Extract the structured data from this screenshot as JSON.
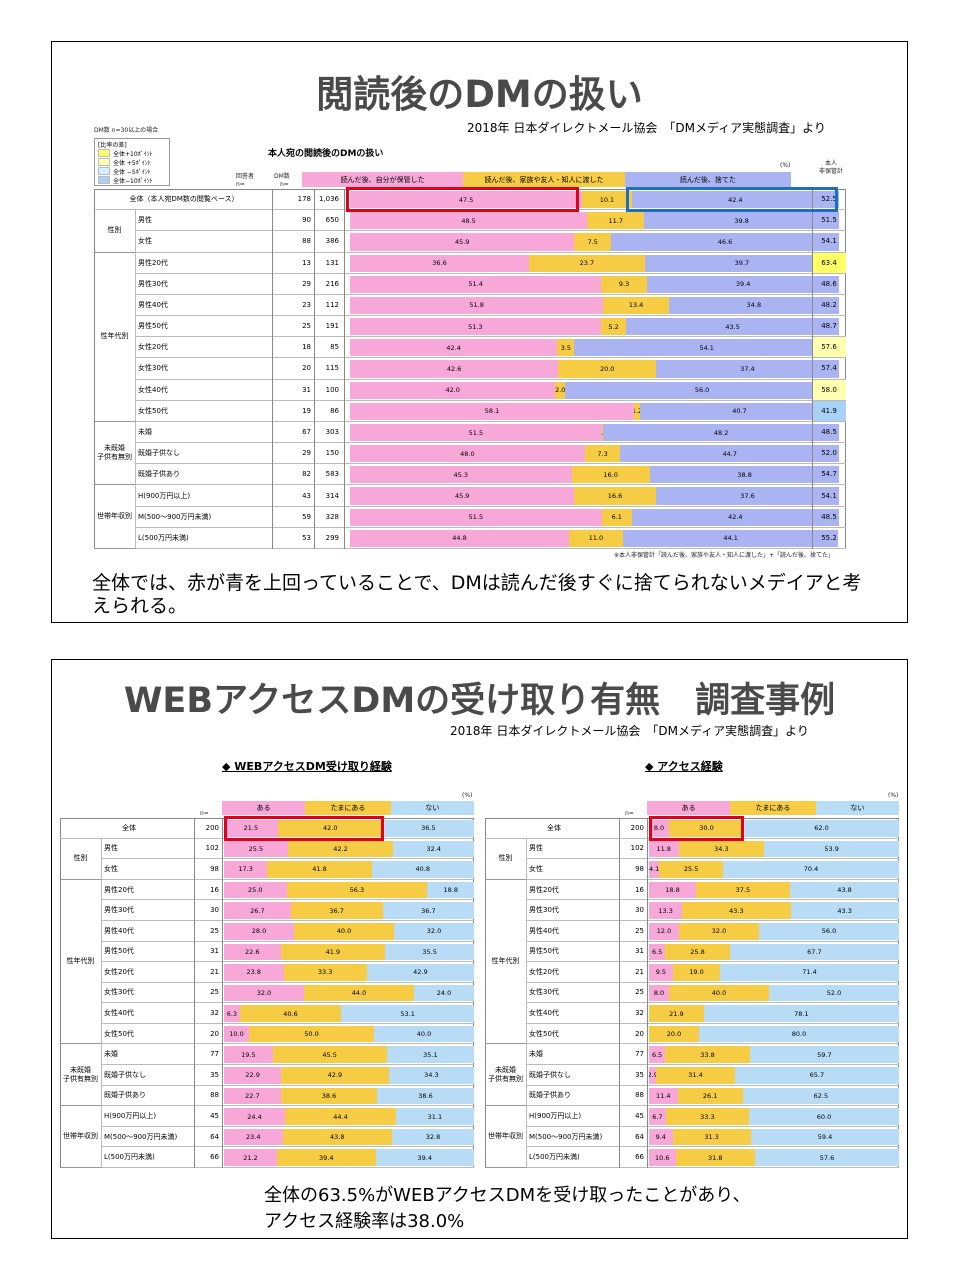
{
  "slide1": {
    "title": "閲読後のDMの扱い",
    "source": "2018年 日本ダイレクトメール協会　「DMメディア実態調査」より",
    "note_top": "DM数 n=30以上の場合",
    "legend": [
      "[比率の差]",
      "全体+10ﾎﾟｲﾝﾄ",
      "全体 +5ﾎﾟｲﾝﾄ",
      "全体 −5ﾎﾟｲﾝﾄ",
      "全体−10ﾎﾟｲﾝﾄ"
    ],
    "chart_title": "本人宛の閲読後のDMの扱い",
    "percent_label": "(%)",
    "col_respondents": "回答者",
    "col_respondents_n": "n=",
    "col_dm": "DM数",
    "col_dm_n": "n=",
    "col_right": "本人\n非保管計",
    "series_labels": [
      "読んだ後、自分が保管した",
      "読んだ後、家族や友人・知人に渡した",
      "読んだ後、捨てた"
    ],
    "footnote": "※本人非保管計「読んだ後、家族や友人・知人に渡した」+「読んだ後、捨てた」",
    "caption": "全体では、赤が青を上回っていることで、DMは読んだ後すぐに捨てられないメデイアと考えられる。",
    "colors": {
      "keep": "#f7a8d8",
      "give": "#f5cc44",
      "discard": "#aab4f2",
      "hl_red": "#e0001a",
      "hl_blue": "#1f6fc0",
      "hi_plus10": "#ffff66",
      "hi_plus5": "#ffffb0",
      "hi_minus5": "#d6ecff",
      "hi_minus10": "#a8d2f5"
    }
  },
  "slide2": {
    "title": "WEBアクセスDMの受け取り有無　調査事例",
    "source": "2018年 日本ダイレクトメール協会　「DMメディア実態調査」より",
    "caption_line1": "全体の63.5%がWEBアクセスDMを受け取ったことがあり、",
    "caption_line2": "アクセス経験率は38.0%",
    "colors": {
      "aru": "#f7a8d8",
      "tama": "#f5cc44",
      "nai": "#b8dcf5",
      "hl_red": "#e0001a"
    }
  },
  "chart_data": [
    {
      "type": "bar",
      "title": "本人宛の閲読後のDMの扱い",
      "unit": "%",
      "groups": [
        {
          "label": "",
          "rows": [
            0
          ]
        },
        {
          "label": "性別",
          "rows": [
            1,
            2
          ]
        },
        {
          "label": "性年代別",
          "rows": [
            3,
            4,
            5,
            6,
            7,
            8,
            9,
            10
          ]
        },
        {
          "label": "未既婚\n子供有無別",
          "rows": [
            11,
            12,
            13
          ]
        },
        {
          "label": "世帯年収別",
          "rows": [
            14,
            15,
            16
          ]
        }
      ],
      "categories": [
        "全体（本人宛DM数の閲覧ベース）",
        "男性",
        "女性",
        "男性20代",
        "男性30代",
        "男性40代",
        "男性50代",
        "女性20代",
        "女性30代",
        "女性40代",
        "女性50代",
        "未婚",
        "既婚子供なし",
        "既婚子供あり",
        "H(900万円以上)",
        "M(500～900万円未満)",
        "L(500万円未満)"
      ],
      "respondents": [
        "178",
        "90",
        "88",
        "13",
        "29",
        "23",
        "25",
        "18",
        "20",
        "31",
        "19",
        "67",
        "29",
        "82",
        "43",
        "59",
        "53"
      ],
      "dm_count": [
        "1,036",
        "650",
        "386",
        "131",
        "216",
        "112",
        "191",
        "85",
        "115",
        "100",
        "86",
        "303",
        "150",
        "583",
        "314",
        "328",
        "299"
      ],
      "series": [
        {
          "name": "読んだ後、自分が保管した",
          "values": [
            47.5,
            48.5,
            45.9,
            36.6,
            51.4,
            51.8,
            51.3,
            42.4,
            42.6,
            42.0,
            58.1,
            51.5,
            48.0,
            45.3,
            45.9,
            51.5,
            44.8
          ]
        },
        {
          "name": "読んだ後、家族や友人・知人に渡した",
          "values": [
            10.1,
            11.7,
            7.5,
            23.7,
            9.3,
            13.4,
            5.2,
            3.5,
            20.0,
            2.0,
            1.2,
            0.3,
            7.3,
            16.0,
            16.6,
            6.1,
            11.0
          ]
        },
        {
          "name": "読んだ後、捨てた",
          "values": [
            42.4,
            39.8,
            46.6,
            39.7,
            39.4,
            34.8,
            43.5,
            54.1,
            37.4,
            56.0,
            40.7,
            48.2,
            44.7,
            38.8,
            37.6,
            42.4,
            44.1
          ]
        }
      ],
      "nonkeep_total": [
        "52.5",
        "51.5",
        "54.1",
        "63.4",
        "48.6",
        "48.2",
        "48.7",
        "57.6",
        "57.4",
        "58.0",
        "41.9",
        "48.5",
        "52.0",
        "54.7",
        "54.1",
        "48.5",
        "55.2"
      ],
      "nonkeep_highlight": [
        "",
        "",
        "",
        "plus10",
        "",
        "",
        "",
        "plus5",
        "",
        "plus5",
        "minus10",
        "",
        "",
        "",
        "",
        "",
        ""
      ]
    },
    {
      "type": "bar",
      "title": "◆ WEBアクセスDM受け取り経験",
      "unit": "%",
      "n_label": "n=",
      "groups": [
        {
          "label": "",
          "rows": [
            0
          ]
        },
        {
          "label": "性別",
          "rows": [
            1,
            2
          ]
        },
        {
          "label": "性年代別",
          "rows": [
            3,
            4,
            5,
            6,
            7,
            8,
            9,
            10
          ]
        },
        {
          "label": "未既婚\n子供有無別",
          "rows": [
            11,
            12,
            13
          ]
        },
        {
          "label": "世帯年収別",
          "rows": [
            14,
            15,
            16
          ]
        }
      ],
      "categories": [
        "全体",
        "男性",
        "女性",
        "男性20代",
        "男性30代",
        "男性40代",
        "男性50代",
        "女性20代",
        "女性30代",
        "女性40代",
        "女性50代",
        "未婚",
        "既婚子供なし",
        "既婚子供あり",
        "H(900万円以上)",
        "M(500～900万円未満)",
        "L(500万円未満)"
      ],
      "n": [
        "200",
        "102",
        "98",
        "16",
        "30",
        "25",
        "31",
        "21",
        "25",
        "32",
        "20",
        "77",
        "35",
        "88",
        "45",
        "64",
        "66"
      ],
      "series": [
        {
          "name": "ある",
          "values": [
            21.5,
            25.5,
            17.3,
            25.0,
            26.7,
            28.0,
            22.6,
            23.8,
            32.0,
            6.3,
            10.0,
            19.5,
            22.9,
            22.7,
            24.4,
            23.4,
            21.2
          ]
        },
        {
          "name": "たまにある",
          "values": [
            42.0,
            42.2,
            41.8,
            56.3,
            36.7,
            40.0,
            41.9,
            33.3,
            44.0,
            40.6,
            50.0,
            45.5,
            42.9,
            38.6,
            44.4,
            43.8,
            39.4
          ]
        },
        {
          "name": "ない",
          "values": [
            36.5,
            32.4,
            40.8,
            18.8,
            36.7,
            32.0,
            35.5,
            42.9,
            24.0,
            53.1,
            40.0,
            35.1,
            34.3,
            38.6,
            31.1,
            32.8,
            39.4
          ]
        }
      ]
    },
    {
      "type": "bar",
      "title": "◆ アクセス経験",
      "unit": "%",
      "n_label": "n=",
      "groups": [
        {
          "label": "",
          "rows": [
            0
          ]
        },
        {
          "label": "性別",
          "rows": [
            1,
            2
          ]
        },
        {
          "label": "性年代別",
          "rows": [
            3,
            4,
            5,
            6,
            7,
            8,
            9,
            10
          ]
        },
        {
          "label": "未既婚\n子供有無別",
          "rows": [
            11,
            12,
            13
          ]
        },
        {
          "label": "世帯年収別",
          "rows": [
            14,
            15,
            16
          ]
        }
      ],
      "categories": [
        "全体",
        "男性",
        "女性",
        "男性20代",
        "男性30代",
        "男性40代",
        "男性50代",
        "女性20代",
        "女性30代",
        "女性40代",
        "女性50代",
        "未婚",
        "既婚子供なし",
        "既婚子供あり",
        "H(900万円以上)",
        "M(500～900万円未満)",
        "L(500万円未満)"
      ],
      "n": [
        "200",
        "102",
        "98",
        "16",
        "30",
        "25",
        "31",
        "21",
        "25",
        "32",
        "20",
        "77",
        "35",
        "88",
        "45",
        "64",
        "66"
      ],
      "series": [
        {
          "name": "ある",
          "values": [
            8.0,
            11.8,
            4.1,
            18.8,
            13.3,
            12.0,
            6.5,
            9.5,
            8.0,
            0,
            0,
            6.5,
            2.9,
            11.4,
            6.7,
            9.4,
            10.6
          ]
        },
        {
          "name": "たまにある",
          "values": [
            30.0,
            34.3,
            25.5,
            37.5,
            43.3,
            32.0,
            25.8,
            19.0,
            40.0,
            21.9,
            20.0,
            33.8,
            31.4,
            26.1,
            33.3,
            31.3,
            31.8
          ]
        },
        {
          "name": "ない",
          "values": [
            62.0,
            53.9,
            70.4,
            43.8,
            43.3,
            56.0,
            67.7,
            71.4,
            52.0,
            78.1,
            80.0,
            59.7,
            65.7,
            62.5,
            60.0,
            59.4,
            57.6
          ]
        }
      ]
    }
  ]
}
